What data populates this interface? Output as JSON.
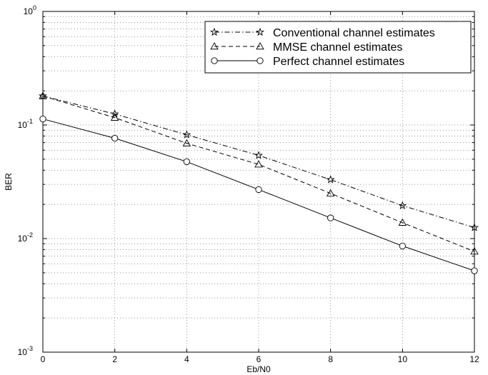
{
  "chart_data": {
    "type": "line",
    "xlabel": "Eb/N0",
    "ylabel": "BER",
    "xlim": [
      0,
      12
    ],
    "ylim": [
      0.001,
      1
    ],
    "yscale": "log",
    "grid": true,
    "legend_position": "top-right",
    "x_ticks": [
      "0",
      "2",
      "4",
      "6",
      "8",
      "10",
      "12"
    ],
    "y_ticks": [
      {
        "base": "10",
        "exp": "0"
      },
      {
        "base": "10",
        "exp": "-1"
      },
      {
        "base": "10",
        "exp": "-2"
      },
      {
        "base": "10",
        "exp": "-3"
      }
    ],
    "x": [
      0,
      2,
      4,
      6,
      8,
      10,
      12
    ],
    "series": [
      {
        "name": "Conventional channel estimates",
        "marker": "star",
        "line": "dashdot",
        "values": [
          0.18,
          0.125,
          0.082,
          0.054,
          0.033,
          0.0195,
          0.0125
        ]
      },
      {
        "name": "MMSE channel estimates",
        "marker": "triangle",
        "line": "dashed",
        "values": [
          0.18,
          0.116,
          0.069,
          0.045,
          0.025,
          0.0138,
          0.0077
        ]
      },
      {
        "name": "Perfect channel estimates",
        "marker": "circle",
        "line": "solid",
        "values": [
          0.113,
          0.0765,
          0.0475,
          0.027,
          0.0152,
          0.0086,
          0.0052
        ]
      }
    ]
  }
}
